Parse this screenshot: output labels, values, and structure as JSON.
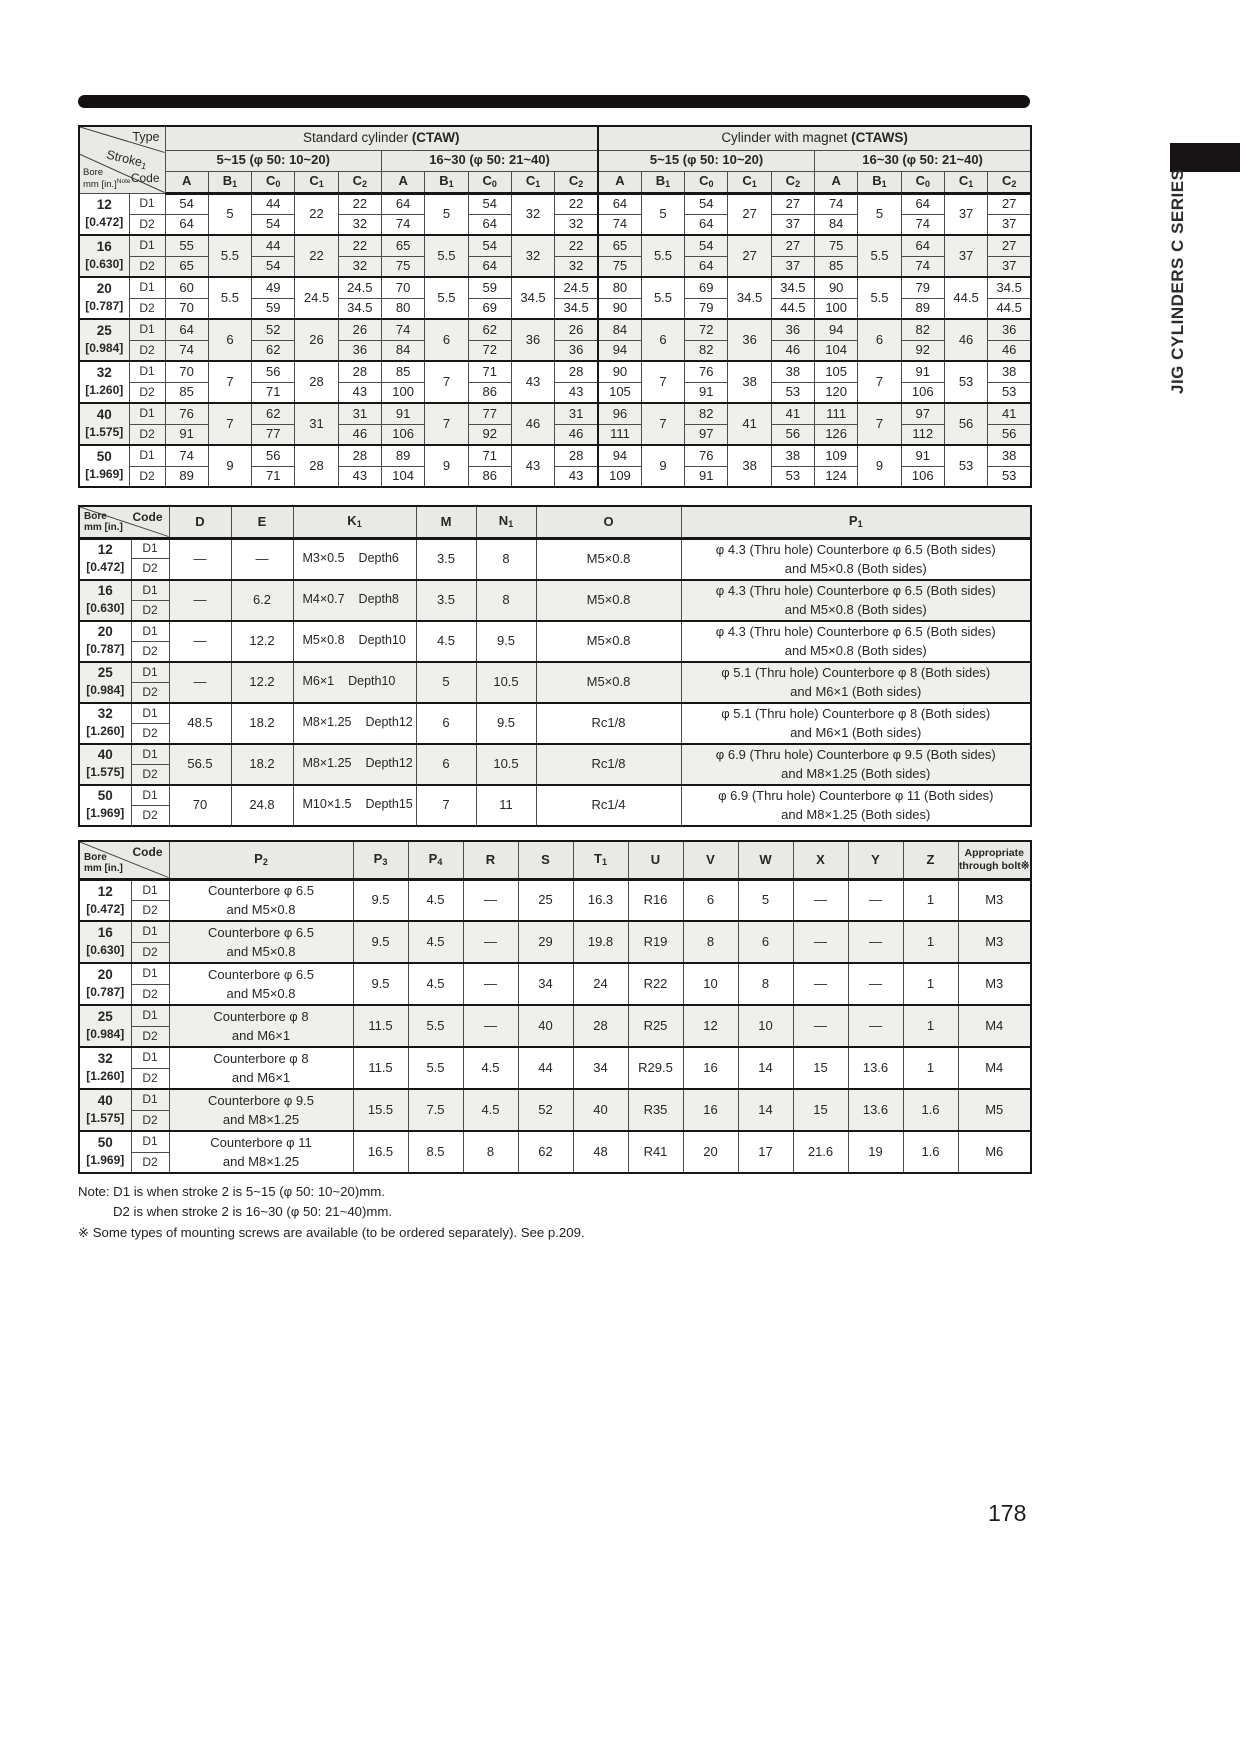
{
  "page": {
    "number": "178"
  },
  "sidebar": {
    "title": "JIG CYLINDERS C SERIES"
  },
  "common": {
    "type_label": "Type",
    "stroke_label": "Stroke",
    "stroke_sub": "1",
    "bore_label": "Bore",
    "bore_unit": "mm [in.]",
    "bore_note": "Note",
    "code_label": "Code"
  },
  "table1": {
    "sections": [
      {
        "name": "Standard cylinder",
        "code": "(CTAW)"
      },
      {
        "name": "Cylinder with magnet",
        "code": "(CTAWS)"
      }
    ],
    "strokes": [
      "5~15 (φ 50: 10~20)",
      "16~30 (φ 50: 21~40)"
    ],
    "columns": [
      "A",
      "B1",
      "C0",
      "C1",
      "C2"
    ],
    "rows": [
      {
        "bore": "12",
        "inch": "[0.472]",
        "codes": [
          "D1",
          "D2"
        ],
        "blocks": [
          {
            "A": [
              "54",
              "64"
            ],
            "B1": "5",
            "C0": [
              "44",
              "54"
            ],
            "C1": "22",
            "C2": [
              "22",
              "32"
            ]
          },
          {
            "A": [
              "64",
              "74"
            ],
            "B1": "5",
            "C0": [
              "54",
              "64"
            ],
            "C1": "32",
            "C2": [
              "22",
              "32"
            ]
          },
          {
            "A": [
              "64",
              "74"
            ],
            "B1": "5",
            "C0": [
              "54",
              "64"
            ],
            "C1": "27",
            "C2": [
              "27",
              "37"
            ]
          },
          {
            "A": [
              "74",
              "84"
            ],
            "B1": "5",
            "C0": [
              "64",
              "74"
            ],
            "C1": "37",
            "C2": [
              "27",
              "37"
            ]
          }
        ]
      },
      {
        "bore": "16",
        "inch": "[0.630]",
        "codes": [
          "D1",
          "D2"
        ],
        "blocks": [
          {
            "A": [
              "55",
              "65"
            ],
            "B1": "5.5",
            "C0": [
              "44",
              "54"
            ],
            "C1": "22",
            "C2": [
              "22",
              "32"
            ]
          },
          {
            "A": [
              "65",
              "75"
            ],
            "B1": "5.5",
            "C0": [
              "54",
              "64"
            ],
            "C1": "32",
            "C2": [
              "22",
              "32"
            ]
          },
          {
            "A": [
              "65",
              "75"
            ],
            "B1": "5.5",
            "C0": [
              "54",
              "64"
            ],
            "C1": "27",
            "C2": [
              "27",
              "37"
            ]
          },
          {
            "A": [
              "75",
              "85"
            ],
            "B1": "5.5",
            "C0": [
              "64",
              "74"
            ],
            "C1": "37",
            "C2": [
              "27",
              "37"
            ]
          }
        ]
      },
      {
        "bore": "20",
        "inch": "[0.787]",
        "codes": [
          "D1",
          "D2"
        ],
        "blocks": [
          {
            "A": [
              "60",
              "70"
            ],
            "B1": "5.5",
            "C0": [
              "49",
              "59"
            ],
            "C1": "24.5",
            "C2": [
              "24.5",
              "34.5"
            ]
          },
          {
            "A": [
              "70",
              "80"
            ],
            "B1": "5.5",
            "C0": [
              "59",
              "69"
            ],
            "C1": "34.5",
            "C2": [
              "24.5",
              "34.5"
            ]
          },
          {
            "A": [
              "80",
              "90"
            ],
            "B1": "5.5",
            "C0": [
              "69",
              "79"
            ],
            "C1": "34.5",
            "C2": [
              "34.5",
              "44.5"
            ]
          },
          {
            "A": [
              "90",
              "100"
            ],
            "B1": "5.5",
            "C0": [
              "79",
              "89"
            ],
            "C1": "44.5",
            "C2": [
              "34.5",
              "44.5"
            ]
          }
        ]
      },
      {
        "bore": "25",
        "inch": "[0.984]",
        "codes": [
          "D1",
          "D2"
        ],
        "blocks": [
          {
            "A": [
              "64",
              "74"
            ],
            "B1": "6",
            "C0": [
              "52",
              "62"
            ],
            "C1": "26",
            "C2": [
              "26",
              "36"
            ]
          },
          {
            "A": [
              "74",
              "84"
            ],
            "B1": "6",
            "C0": [
              "62",
              "72"
            ],
            "C1": "36",
            "C2": [
              "26",
              "36"
            ]
          },
          {
            "A": [
              "84",
              "94"
            ],
            "B1": "6",
            "C0": [
              "72",
              "82"
            ],
            "C1": "36",
            "C2": [
              "36",
              "46"
            ]
          },
          {
            "A": [
              "94",
              "104"
            ],
            "B1": "6",
            "C0": [
              "82",
              "92"
            ],
            "C1": "46",
            "C2": [
              "36",
              "46"
            ]
          }
        ]
      },
      {
        "bore": "32",
        "inch": "[1.260]",
        "codes": [
          "D1",
          "D2"
        ],
        "blocks": [
          {
            "A": [
              "70",
              "85"
            ],
            "B1": "7",
            "C0": [
              "56",
              "71"
            ],
            "C1": "28",
            "C2": [
              "28",
              "43"
            ]
          },
          {
            "A": [
              "85",
              "100"
            ],
            "B1": "7",
            "C0": [
              "71",
              "86"
            ],
            "C1": "43",
            "C2": [
              "28",
              "43"
            ]
          },
          {
            "A": [
              "90",
              "105"
            ],
            "B1": "7",
            "C0": [
              "76",
              "91"
            ],
            "C1": "38",
            "C2": [
              "38",
              "53"
            ]
          },
          {
            "A": [
              "105",
              "120"
            ],
            "B1": "7",
            "C0": [
              "91",
              "106"
            ],
            "C1": "53",
            "C2": [
              "38",
              "53"
            ]
          }
        ]
      },
      {
        "bore": "40",
        "inch": "[1.575]",
        "codes": [
          "D1",
          "D2"
        ],
        "blocks": [
          {
            "A": [
              "76",
              "91"
            ],
            "B1": "7",
            "C0": [
              "62",
              "77"
            ],
            "C1": "31",
            "C2": [
              "31",
              "46"
            ]
          },
          {
            "A": [
              "91",
              "106"
            ],
            "B1": "7",
            "C0": [
              "77",
              "92"
            ],
            "C1": "46",
            "C2": [
              "31",
              "46"
            ]
          },
          {
            "A": [
              "96",
              "111"
            ],
            "B1": "7",
            "C0": [
              "82",
              "97"
            ],
            "C1": "41",
            "C2": [
              "41",
              "56"
            ]
          },
          {
            "A": [
              "111",
              "126"
            ],
            "B1": "7",
            "C0": [
              "97",
              "112"
            ],
            "C1": "56",
            "C2": [
              "41",
              "56"
            ]
          }
        ]
      },
      {
        "bore": "50",
        "inch": "[1.969]",
        "codes": [
          "D1",
          "D2"
        ],
        "blocks": [
          {
            "A": [
              "74",
              "89"
            ],
            "B1": "9",
            "C0": [
              "56",
              "71"
            ],
            "C1": "28",
            "C2": [
              "28",
              "43"
            ]
          },
          {
            "A": [
              "89",
              "104"
            ],
            "B1": "9",
            "C0": [
              "71",
              "86"
            ],
            "C1": "43",
            "C2": [
              "28",
              "43"
            ]
          },
          {
            "A": [
              "94",
              "109"
            ],
            "B1": "9",
            "C0": [
              "76",
              "91"
            ],
            "C1": "38",
            "C2": [
              "38",
              "53"
            ]
          },
          {
            "A": [
              "109",
              "124"
            ],
            "B1": "9",
            "C0": [
              "91",
              "106"
            ],
            "C1": "53",
            "C2": [
              "38",
              "53"
            ]
          }
        ]
      }
    ]
  },
  "table2": {
    "columns": [
      "D",
      "E",
      "K1",
      "M",
      "N1",
      "O",
      "P1"
    ],
    "rows": [
      {
        "bore": "12",
        "inch": "[0.472]",
        "codes": [
          "D1",
          "D2"
        ],
        "D": "—",
        "E": "—",
        "K1": [
          "M3×0.5",
          "Depth6"
        ],
        "M": "3.5",
        "N1": "8",
        "O": "M5×0.8",
        "P1": [
          "φ 4.3 (Thru hole) Counterbore φ 6.5 (Both sides)",
          "and M5×0.8  (Both sides)"
        ]
      },
      {
        "bore": "16",
        "inch": "[0.630]",
        "codes": [
          "D1",
          "D2"
        ],
        "D": "—",
        "E": "6.2",
        "K1": [
          "M4×0.7",
          "Depth8"
        ],
        "M": "3.5",
        "N1": "8",
        "O": "M5×0.8",
        "P1": [
          "φ 4.3 (Thru hole) Counterbore φ 6.5 (Both sides)",
          "and M5×0.8  (Both sides)"
        ]
      },
      {
        "bore": "20",
        "inch": "[0.787]",
        "codes": [
          "D1",
          "D2"
        ],
        "D": "—",
        "E": "12.2",
        "K1": [
          "M5×0.8",
          "Depth10"
        ],
        "M": "4.5",
        "N1": "9.5",
        "O": "M5×0.8",
        "P1": [
          "φ 4.3 (Thru hole) Counterbore φ 6.5 (Both sides)",
          "and M5×0.8  (Both sides)"
        ]
      },
      {
        "bore": "25",
        "inch": "[0.984]",
        "codes": [
          "D1",
          "D2"
        ],
        "D": "—",
        "E": "12.2",
        "K1": [
          "M6×1",
          "Depth10"
        ],
        "M": "5",
        "N1": "10.5",
        "O": "M5×0.8",
        "P1": [
          "φ 5.1 (Thru hole) Counterbore φ 8   (Both sides)",
          "and M6×1    (Both sides)"
        ]
      },
      {
        "bore": "32",
        "inch": "[1.260]",
        "codes": [
          "D1",
          "D2"
        ],
        "D": "48.5",
        "E": "18.2",
        "K1": [
          "M8×1.25",
          "Depth12"
        ],
        "M": "6",
        "N1": "9.5",
        "O": "Rc1/8",
        "P1": [
          "φ 5.1 (Thru hole) Counterbore φ 8   (Both sides)",
          "and M6×1    (Both sides)"
        ]
      },
      {
        "bore": "40",
        "inch": "[1.575]",
        "codes": [
          "D1",
          "D2"
        ],
        "D": "56.5",
        "E": "18.2",
        "K1": [
          "M8×1.25",
          "Depth12"
        ],
        "M": "6",
        "N1": "10.5",
        "O": "Rc1/8",
        "P1": [
          "φ 6.9 (Thru hole) Counterbore φ 9.5 (Both sides)",
          "and M8×1.25 (Both sides)"
        ]
      },
      {
        "bore": "50",
        "inch": "[1.969]",
        "codes": [
          "D1",
          "D2"
        ],
        "D": "70",
        "E": "24.8",
        "K1": [
          "M10×1.5",
          "Depth15"
        ],
        "M": "7",
        "N1": "11",
        "O": "Rc1/4",
        "P1": [
          "φ 6.9 (Thru hole) Counterbore φ 11 (Both sides)",
          "and M8×1.25 (Both sides)"
        ]
      }
    ]
  },
  "table3": {
    "columns": [
      "P3",
      "P4",
      "R",
      "S",
      "T1",
      "U",
      "V",
      "W",
      "X",
      "Y",
      "Z"
    ],
    "p2_header": "P2",
    "bolt_header": [
      "Appropriate",
      "through bolt※"
    ],
    "rows": [
      {
        "bore": "12",
        "inch": "[0.472]",
        "codes": [
          "D1",
          "D2"
        ],
        "P2": [
          "Counterbore φ 6.5",
          "and M5×0.8"
        ],
        "vals": [
          "9.5",
          "4.5",
          "—",
          "25",
          "16.3",
          "R16",
          "6",
          "5",
          "—",
          "—",
          "1"
        ],
        "bolt": "M3"
      },
      {
        "bore": "16",
        "inch": "[0.630]",
        "codes": [
          "D1",
          "D2"
        ],
        "P2": [
          "Counterbore φ 6.5",
          "and M5×0.8"
        ],
        "vals": [
          "9.5",
          "4.5",
          "—",
          "29",
          "19.8",
          "R19",
          "8",
          "6",
          "—",
          "—",
          "1"
        ],
        "bolt": "M3"
      },
      {
        "bore": "20",
        "inch": "[0.787]",
        "codes": [
          "D1",
          "D2"
        ],
        "P2": [
          "Counterbore φ 6.5",
          "and M5×0.8"
        ],
        "vals": [
          "9.5",
          "4.5",
          "—",
          "34",
          "24",
          "R22",
          "10",
          "8",
          "—",
          "—",
          "1"
        ],
        "bolt": "M3"
      },
      {
        "bore": "25",
        "inch": "[0.984]",
        "codes": [
          "D1",
          "D2"
        ],
        "P2": [
          "Counterbore φ 8",
          "and M6×1"
        ],
        "vals": [
          "11.5",
          "5.5",
          "—",
          "40",
          "28",
          "R25",
          "12",
          "10",
          "—",
          "—",
          "1"
        ],
        "bolt": "M4"
      },
      {
        "bore": "32",
        "inch": "[1.260]",
        "codes": [
          "D1",
          "D2"
        ],
        "P2": [
          "Counterbore φ 8",
          "and M6×1"
        ],
        "vals": [
          "11.5",
          "5.5",
          "4.5",
          "44",
          "34",
          "R29.5",
          "16",
          "14",
          "15",
          "13.6",
          "1"
        ],
        "bolt": "M4"
      },
      {
        "bore": "40",
        "inch": "[1.575]",
        "codes": [
          "D1",
          "D2"
        ],
        "P2": [
          "Counterbore φ 9.5",
          "and M8×1.25"
        ],
        "vals": [
          "15.5",
          "7.5",
          "4.5",
          "52",
          "40",
          "R35",
          "16",
          "14",
          "15",
          "13.6",
          "1.6"
        ],
        "bolt": "M5"
      },
      {
        "bore": "50",
        "inch": "[1.969]",
        "codes": [
          "D1",
          "D2"
        ],
        "P2": [
          "Counterbore φ 11",
          "and M8×1.25"
        ],
        "vals": [
          "16.5",
          "8.5",
          "8",
          "62",
          "48",
          "R41",
          "20",
          "17",
          "21.6",
          "19",
          "1.6"
        ],
        "bolt": "M6"
      }
    ]
  },
  "notes": [
    "Note: D1 is when stroke 2 is 5~15 (φ 50: 10~20)mm.",
    "D2 is when stroke 2 is 16~30 (φ 50: 21~40)mm.",
    "※ Some types of mounting screws are available (to be ordered separately). See p.209."
  ]
}
